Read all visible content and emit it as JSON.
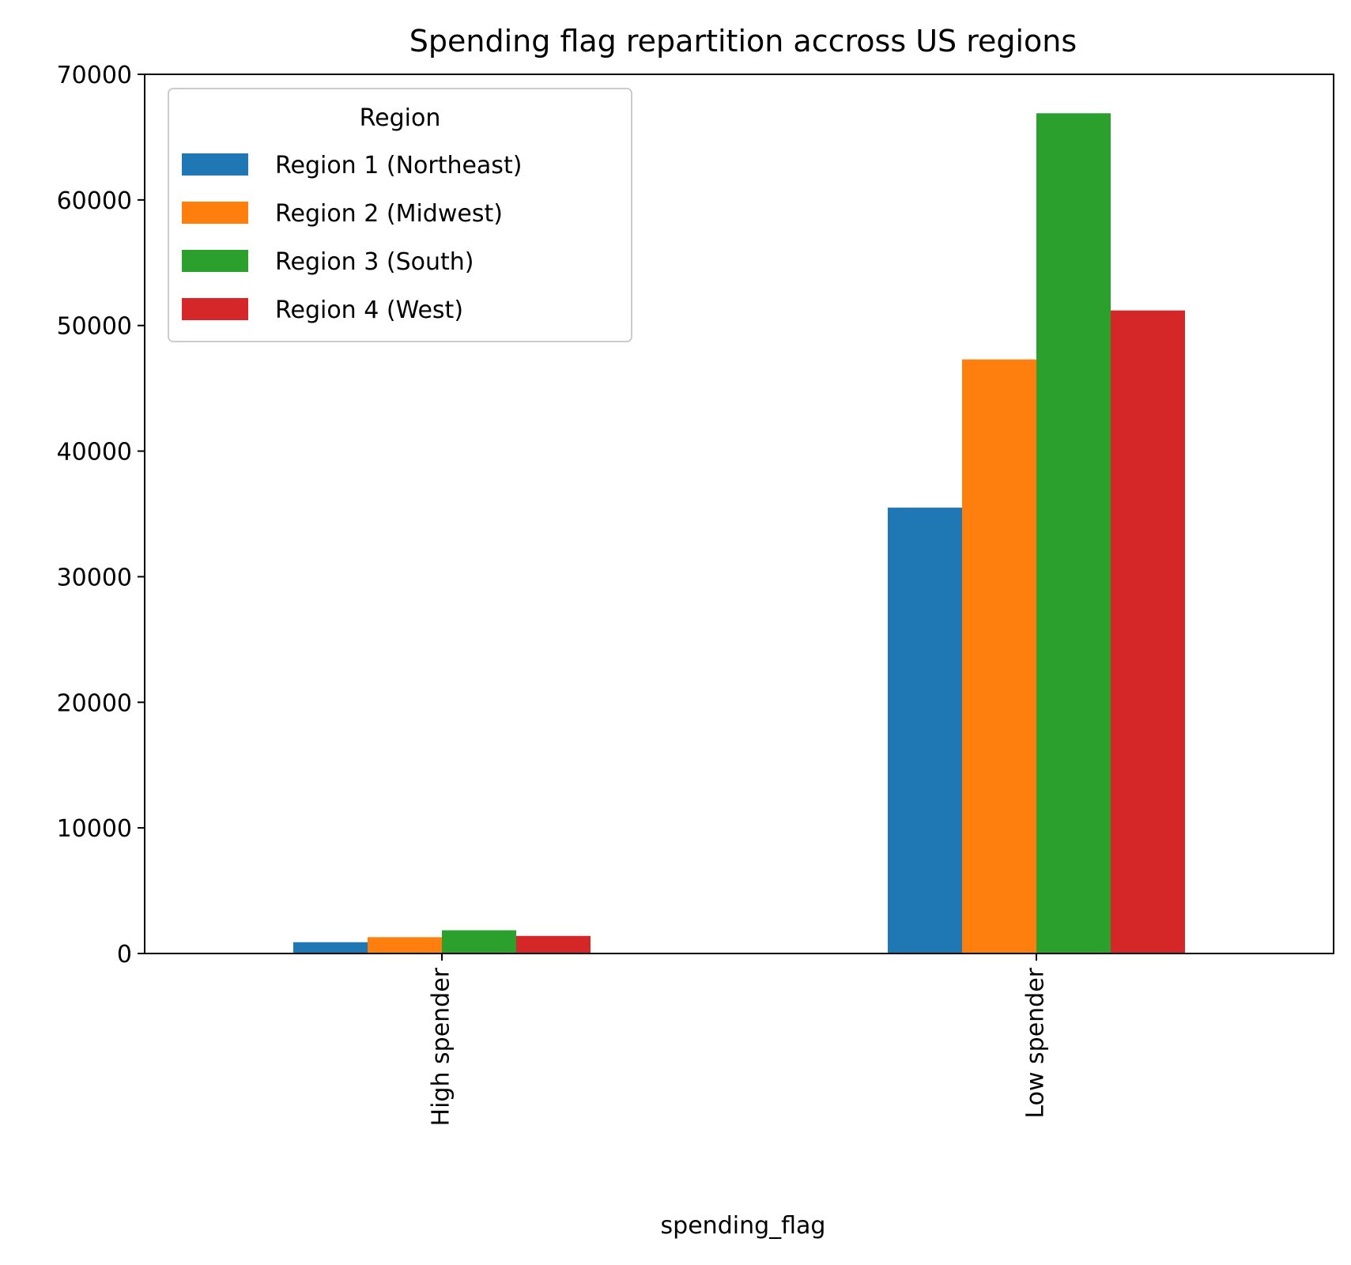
{
  "chart_data": {
    "type": "bar",
    "title": "Spending flag repartition accross US regions",
    "xlabel": "spending_flag",
    "ylabel": "",
    "categories": [
      "High spender",
      "Low spender"
    ],
    "ylim": [
      0,
      70000
    ],
    "yticks": [
      0,
      10000,
      20000,
      30000,
      40000,
      50000,
      60000,
      70000
    ],
    "ytick_labels": [
      "0",
      "10000",
      "20000",
      "30000",
      "40000",
      "50000",
      "60000",
      "70000"
    ],
    "grid": false,
    "legend": {
      "title": "Region",
      "placement": "top-left"
    },
    "series": [
      {
        "name": "Region 1 (Northeast)",
        "color": "#1f77b4",
        "values": [
          900,
          35500
        ]
      },
      {
        "name": "Region 2 (Midwest)",
        "color": "#ff7f0e",
        "values": [
          1300,
          47300
        ]
      },
      {
        "name": "Region 3 (South)",
        "color": "#2ca02c",
        "values": [
          1850,
          66900
        ]
      },
      {
        "name": "Region 4 (West)",
        "color": "#d62728",
        "values": [
          1400,
          51200
        ]
      }
    ]
  }
}
